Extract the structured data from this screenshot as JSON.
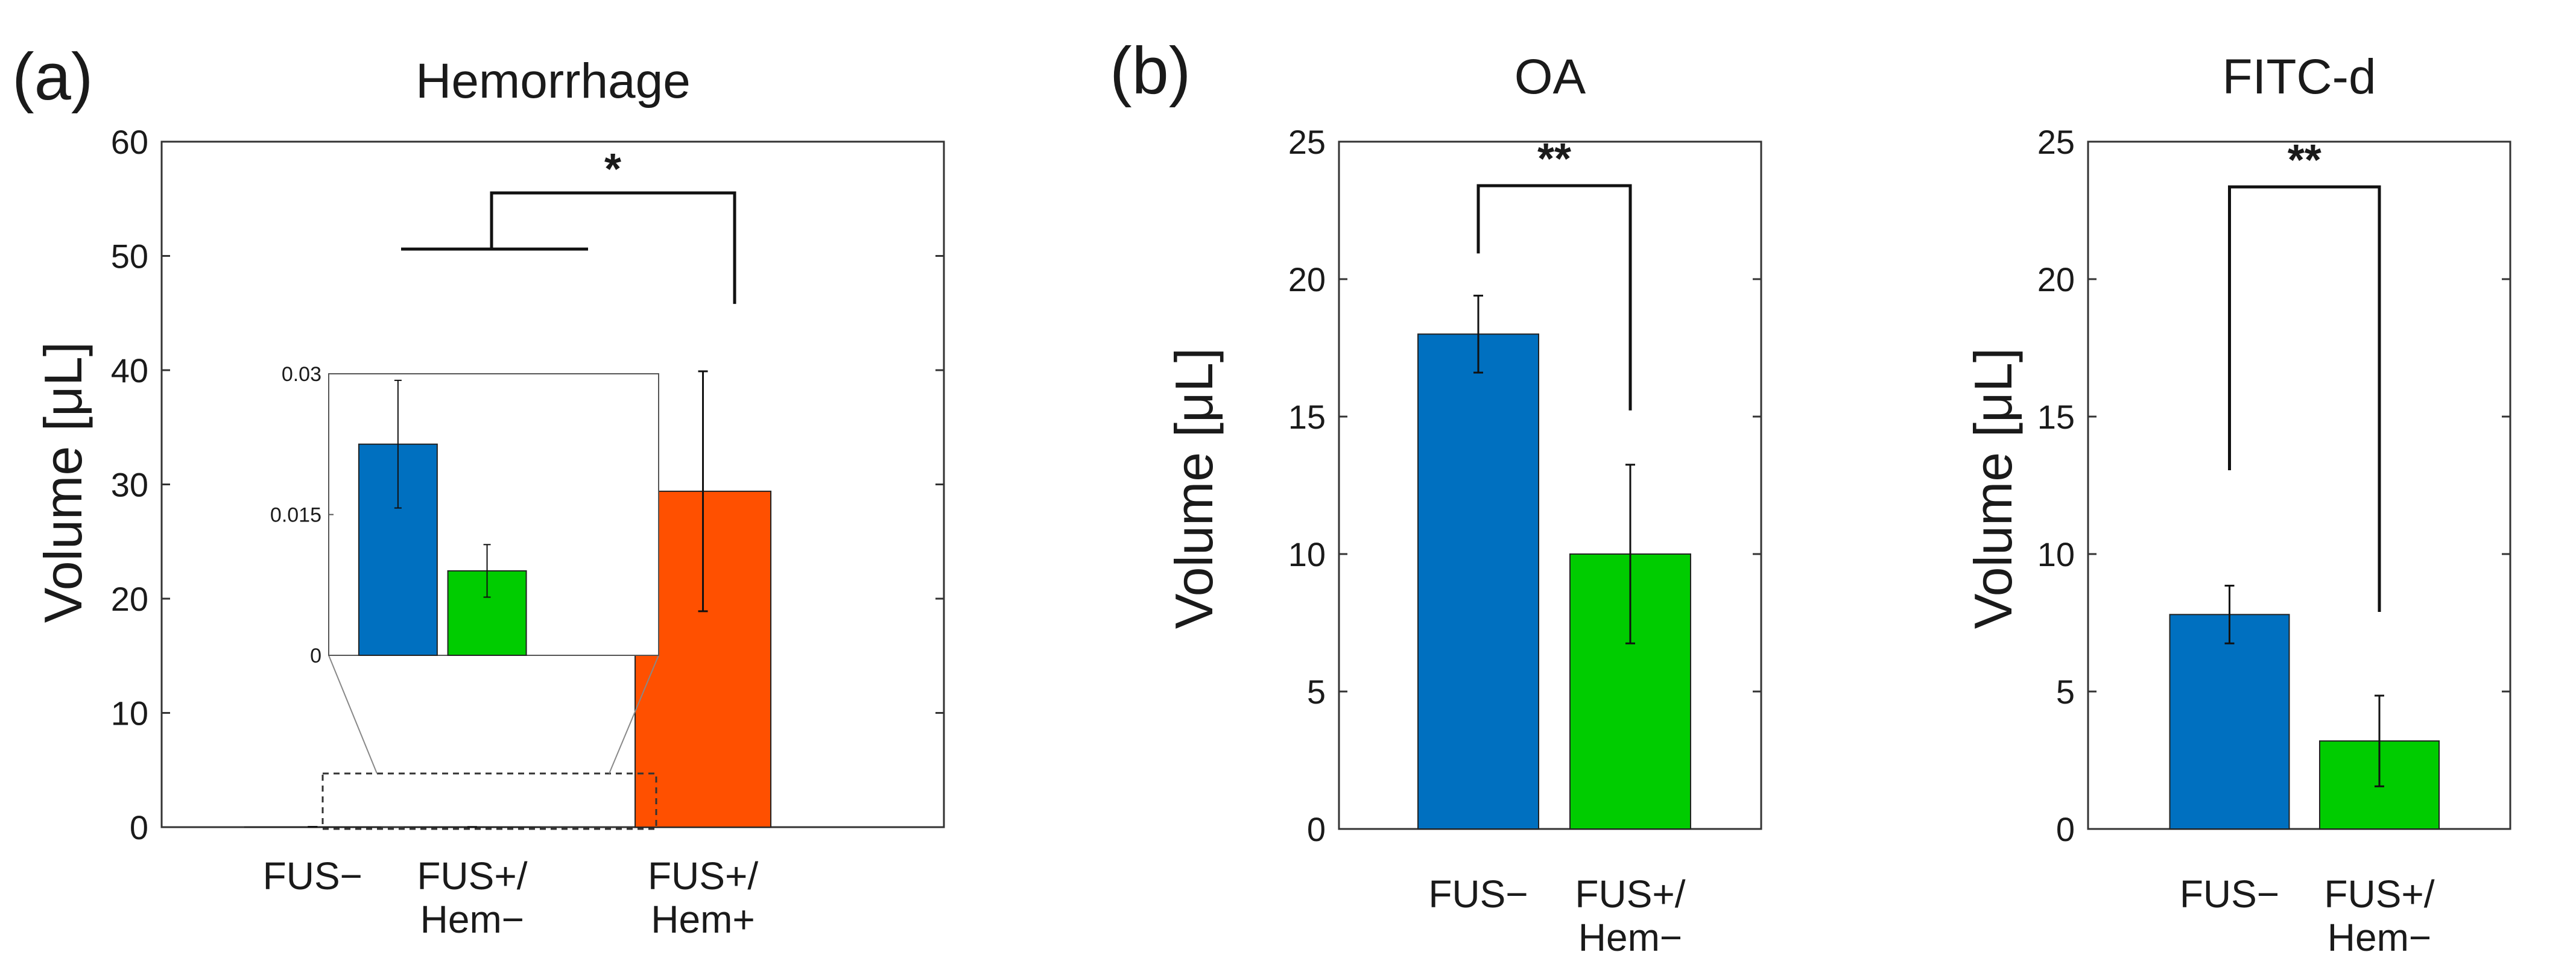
{
  "panels": {
    "a": "(a)",
    "b": "(b)"
  },
  "chart_data": [
    {
      "type": "bar",
      "title": "Hemorrhage",
      "ylabel": "Volume [μL]",
      "xlabel": "",
      "ylim": [
        0,
        60
      ],
      "yticks": [
        0,
        10,
        20,
        30,
        40,
        50,
        60
      ],
      "categories": [
        [
          "FUS−"
        ],
        [
          "FUS+/",
          "Hem−"
        ],
        [
          "FUS+/",
          "Hem+"
        ]
      ],
      "values": [
        0.022,
        0.009,
        29.4
      ],
      "errors": [
        0.007,
        0.0028,
        10.5
      ],
      "colors": [
        "#0070c0",
        "#00cc00",
        "#ff5000"
      ],
      "significance": [
        {
          "label": "*",
          "from": "FUS− + FUS+/Hem−",
          "to": "FUS+/Hem+"
        }
      ],
      "inset": {
        "ylim": [
          0,
          0.03
        ],
        "yticks": [
          "0",
          "0.015",
          "0.03"
        ],
        "values": [
          0.0225,
          0.009
        ],
        "errors": [
          0.0068,
          0.0028
        ]
      }
    },
    {
      "type": "bar",
      "title": "OA",
      "ylabel": "Volume [μL]",
      "xlabel": "",
      "ylim": [
        0,
        25
      ],
      "yticks": [
        0,
        5,
        10,
        15,
        20,
        25
      ],
      "categories": [
        [
          "FUS−"
        ],
        [
          "FUS+/",
          "Hem−"
        ]
      ],
      "values": [
        18.0,
        10.0
      ],
      "errors": [
        1.4,
        3.25
      ],
      "colors": [
        "#0070c0",
        "#00cc00"
      ],
      "significance": [
        {
          "label": "**",
          "from": "FUS−",
          "to": "FUS+/Hem−"
        }
      ]
    },
    {
      "type": "bar",
      "title": "FITC-d",
      "ylabel": "Volume [μL]",
      "xlabel": "",
      "ylim": [
        0,
        25
      ],
      "yticks": [
        0,
        5,
        10,
        15,
        20,
        25
      ],
      "categories": [
        [
          "FUS−"
        ],
        [
          "FUS+/",
          "Hem−"
        ]
      ],
      "values": [
        7.8,
        3.2
      ],
      "errors": [
        1.05,
        1.65
      ],
      "colors": [
        "#0070c0",
        "#00cc00"
      ],
      "significance": [
        {
          "label": "**",
          "from": "FUS−",
          "to": "FUS+/Hem−"
        }
      ]
    }
  ]
}
